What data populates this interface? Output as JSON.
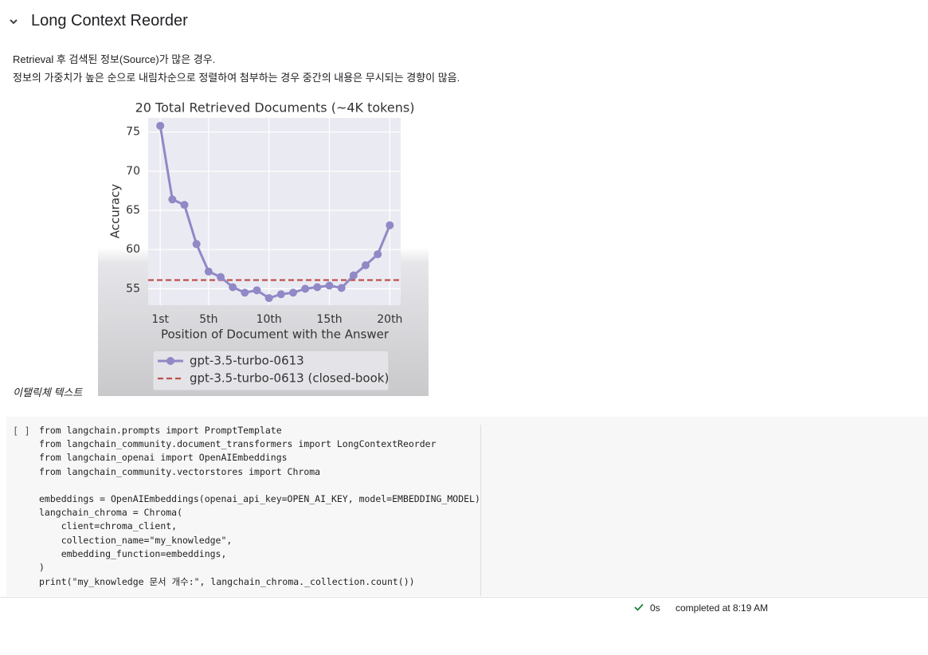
{
  "header": {
    "title": "Long Context Reorder"
  },
  "text": {
    "lines": [
      "Retrieval 후 검색된 정보(Source)가 많은 경우.",
      "정보의 가중치가 높은 순으로 내림차순으로 정렬하여 첨부하는 경우 중간의 내용은 무시되는 경향이 많음."
    ],
    "caption": "이탤릭체 텍스트"
  },
  "chart_data": {
    "type": "line",
    "title": "20 Total Retrieved Documents (~4K tokens)",
    "x_label": "Position of Document with the Answer",
    "y_label": "Accuracy",
    "x": [
      1,
      2,
      3,
      4,
      5,
      6,
      7,
      8,
      9,
      10,
      11,
      12,
      13,
      14,
      15,
      16,
      17,
      18,
      19,
      20
    ],
    "series": [
      {
        "name": "gpt-3.5-turbo-0613",
        "color": "#9188c6",
        "values": [
          75.8,
          66.4,
          65.7,
          60.7,
          57.2,
          56.5,
          55.2,
          54.5,
          54.8,
          53.8,
          54.3,
          54.5,
          55.0,
          55.2,
          55.4,
          55.1,
          56.7,
          58.0,
          59.4,
          63.1
        ]
      }
    ],
    "baseline": {
      "name": "gpt-3.5-turbo-0613 (closed-book)",
      "color": "#c0504d",
      "value": 56.1
    },
    "xlim": [
      0,
      20.9
    ],
    "ylim": [
      52.9,
      76.8
    ],
    "xticks": [
      {
        "value": 1,
        "label": "1st"
      },
      {
        "value": 5,
        "label": "5th"
      },
      {
        "value": 10,
        "label": "10th"
      },
      {
        "value": 15,
        "label": "15th"
      },
      {
        "value": 20,
        "label": "20th"
      }
    ],
    "yticks": [
      55,
      60,
      65,
      70,
      75
    ],
    "grid": true
  },
  "code": {
    "prompt": "[ ]",
    "blocks": [
      [
        "from langchain.prompts import PromptTemplate",
        "from langchain_community.document_transformers import LongContextReorder",
        "from langchain_openai import OpenAIEmbeddings",
        "from langchain_community.vectorstores import Chroma"
      ],
      [
        "embeddings = OpenAIEmbeddings(openai_api_key=OPEN_AI_KEY, model=EMBEDDING_MODEL)",
        "langchain_chroma = Chroma(",
        "    client=chroma_client,",
        "    collection_name=\"my_knowledge\",",
        "    embedding_function=embeddings,",
        ")",
        "print(\"my_knowledge 문서 개수:\", langchain_chroma._collection.count())"
      ]
    ]
  },
  "status": {
    "duration": "0s",
    "message": "completed at 8:19 AM"
  }
}
